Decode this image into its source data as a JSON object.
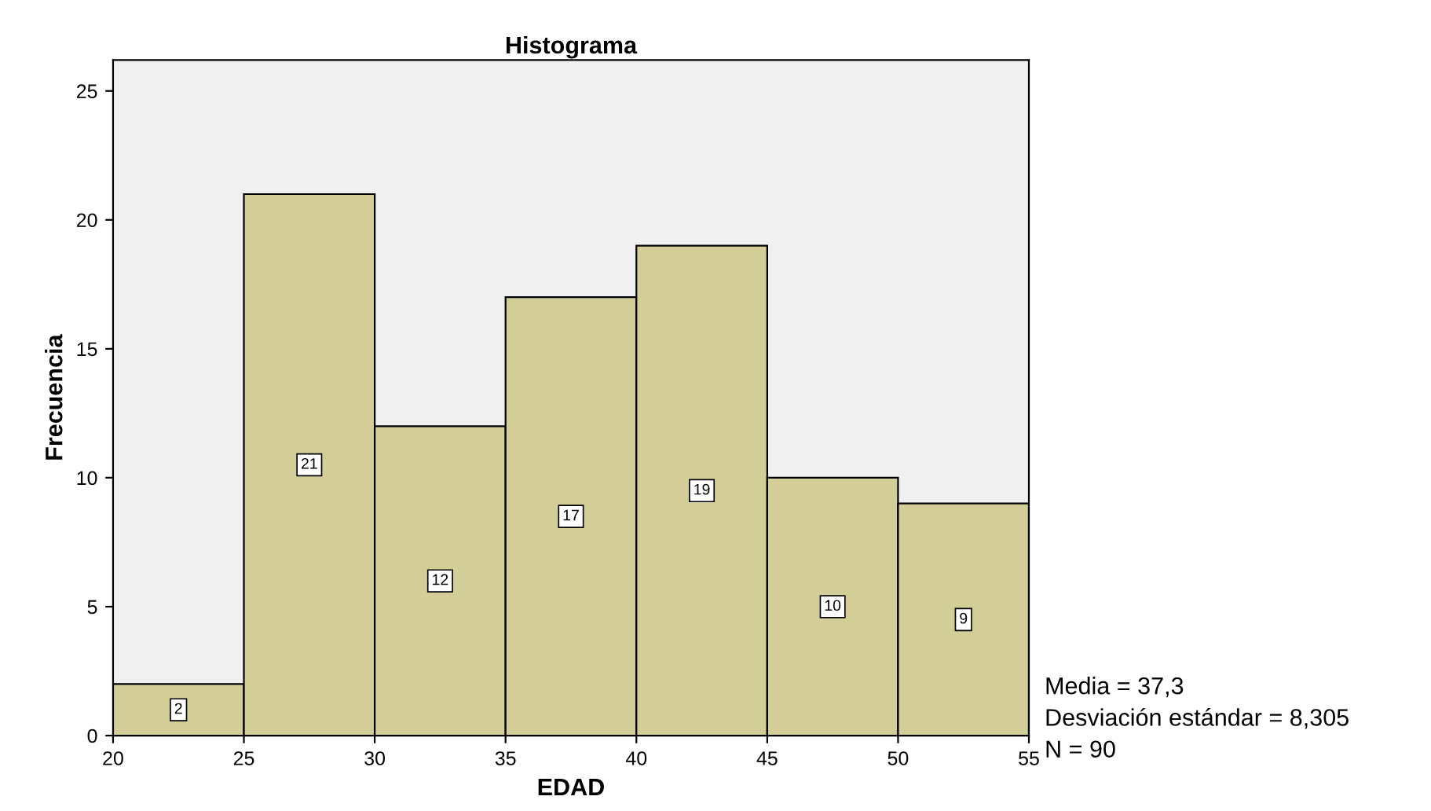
{
  "chart_data": {
    "type": "histogram",
    "title": "Histograma",
    "xlabel": "EDAD",
    "ylabel": "Frecuencia",
    "bins": [
      20,
      25,
      30,
      35,
      40,
      45,
      50,
      55
    ],
    "values": [
      2,
      21,
      12,
      17,
      19,
      10,
      9
    ],
    "color": "#d3ce97",
    "xlim": [
      20,
      55
    ],
    "xticks": [
      20,
      25,
      30,
      35,
      40,
      45,
      50,
      55
    ],
    "ylim": [
      0,
      26.2
    ],
    "yticks": [
      0,
      5,
      10,
      15,
      20,
      25
    ],
    "grid": false,
    "data_labels": true,
    "annotations": [
      "Media = 37,3",
      "Desviación estándar = 8,305",
      "N = 90"
    ]
  }
}
